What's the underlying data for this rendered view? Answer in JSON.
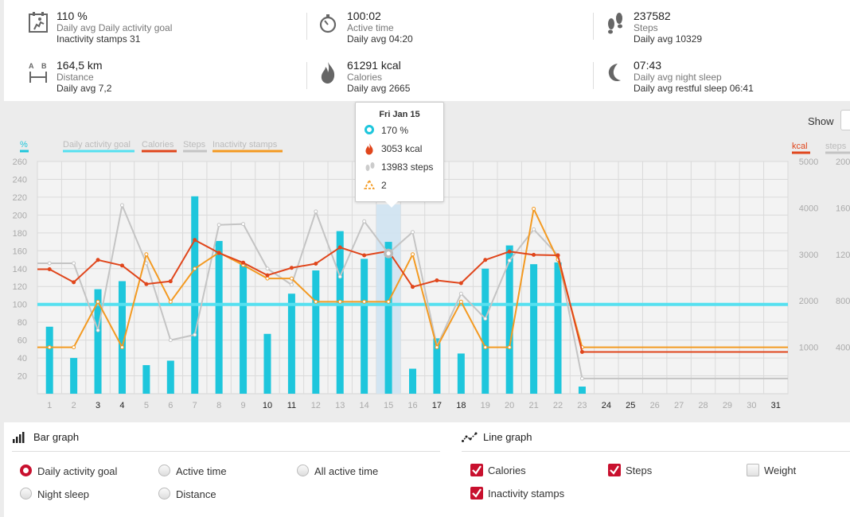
{
  "summary": {
    "activity": {
      "value": "110 %",
      "label": "Daily avg Daily activity goal",
      "avg": "Inactivity stamps 31",
      "icon": "activity-goal-icon"
    },
    "active_time": {
      "value": "100:02",
      "label": "Active time",
      "avg": "Daily avg 04:20",
      "icon": "stopwatch-icon"
    },
    "steps": {
      "value": "237582",
      "label": "Steps",
      "avg": "Daily avg 10329",
      "icon": "footprints-icon"
    },
    "distance": {
      "value": "164,5 km",
      "label": "Distance",
      "avg": "Daily avg 7,2",
      "icon": "distance-icon"
    },
    "calories": {
      "value": "61291 kcal",
      "label": "Calories",
      "avg": "Daily avg 2665",
      "icon": "flame-icon"
    },
    "sleep": {
      "value": "07:43",
      "label": "Daily avg night sleep",
      "avg": "Daily avg restful sleep 06:41",
      "icon": "moon-icon"
    }
  },
  "controls": {
    "show_label": "Show"
  },
  "legend": {
    "percent_axis": "%",
    "daily_goal": "Daily activity goal",
    "calories": "Calories",
    "steps": "Steps",
    "inactivity": "Inactivity stamps",
    "kcal_axis": "kcal",
    "steps_axis": "steps"
  },
  "colors": {
    "bar": "#1ec6dc",
    "goal": "#55e0f0",
    "calories": "#e0461c",
    "steps": "#c4c4c4",
    "inactivity": "#f39a22",
    "accent_red": "#c8102e"
  },
  "tooltip": {
    "date": "Fri Jan 15",
    "percent": "170 %",
    "kcal": "3053 kcal",
    "steps": "13983 steps",
    "stamps": "2"
  },
  "chart_data": {
    "type": "bar",
    "x": [
      "1",
      "2",
      "3",
      "4",
      "5",
      "6",
      "7",
      "8",
      "9",
      "10",
      "11",
      "12",
      "13",
      "14",
      "15",
      "16",
      "17",
      "18",
      "19",
      "20",
      "21",
      "22",
      "23",
      "24",
      "25",
      "26",
      "27",
      "28",
      "29",
      "30",
      "31"
    ],
    "bold_days": [
      "3",
      "4",
      "10",
      "11",
      "17",
      "18",
      "24",
      "25",
      "31"
    ],
    "highlight_day": "15",
    "y_left": {
      "ticks": [
        20,
        40,
        60,
        80,
        100,
        120,
        140,
        160,
        180,
        200,
        220,
        240,
        260
      ],
      "ylim": [
        0,
        260
      ]
    },
    "y_kcal": {
      "label": "kcal",
      "ticks": [
        1000,
        2000,
        3000,
        4000,
        5000
      ],
      "ylim": [
        0,
        5000
      ]
    },
    "y_steps": {
      "label": "steps",
      "ticks": [
        "400",
        "800",
        "120",
        "160",
        "200"
      ]
    },
    "goal_line": 100,
    "series": [
      {
        "name": "Daily activity goal",
        "type": "bar",
        "values": [
          75,
          40,
          117,
          126,
          32,
          37,
          221,
          171,
          145,
          67,
          112,
          138,
          182,
          151,
          170,
          28,
          62,
          45,
          140,
          166,
          145,
          147,
          8,
          null,
          null,
          null,
          null,
          null,
          null,
          null,
          null
        ]
      },
      {
        "name": "Calories",
        "type": "line",
        "values": [
          2680,
          2400,
          2880,
          2760,
          2360,
          2420,
          3310,
          3030,
          2820,
          2550,
          2710,
          2800,
          3150,
          2980,
          3070,
          2300,
          2440,
          2380,
          2880,
          3060,
          2990,
          2980,
          900,
          900,
          900,
          900,
          900,
          900,
          900,
          900,
          900
        ]
      },
      {
        "name": "Steps",
        "type": "line",
        "values": [
          146,
          146,
          71,
          211,
          146,
          60,
          66,
          189,
          190,
          140,
          122,
          204,
          131,
          193,
          157,
          181,
          53,
          112,
          84,
          149,
          184,
          155,
          17,
          17,
          17,
          17,
          17,
          17,
          17,
          17,
          17
        ]
      },
      {
        "name": "Inactivity stamps",
        "type": "line",
        "values": [
          52,
          52,
          103,
          52,
          156,
          103,
          140,
          158,
          144,
          129,
          129,
          103,
          103,
          103,
          103,
          156,
          52,
          103,
          52,
          52,
          207,
          150,
          52,
          52,
          52,
          52,
          52,
          52,
          52,
          52,
          52
        ]
      }
    ]
  },
  "bar_graph": {
    "title": "Bar graph",
    "options": [
      {
        "label": "Daily activity goal",
        "selected": true
      },
      {
        "label": "Active time",
        "selected": false
      },
      {
        "label": "All active time",
        "selected": false
      },
      {
        "label": "Night sleep",
        "selected": false
      },
      {
        "label": "Distance",
        "selected": false
      }
    ]
  },
  "line_graph": {
    "title": "Line graph",
    "options": [
      {
        "label": "Calories",
        "checked": true
      },
      {
        "label": "Steps",
        "checked": true
      },
      {
        "label": "Weight",
        "checked": false
      },
      {
        "label": "Inactivity stamps",
        "checked": true
      }
    ]
  }
}
